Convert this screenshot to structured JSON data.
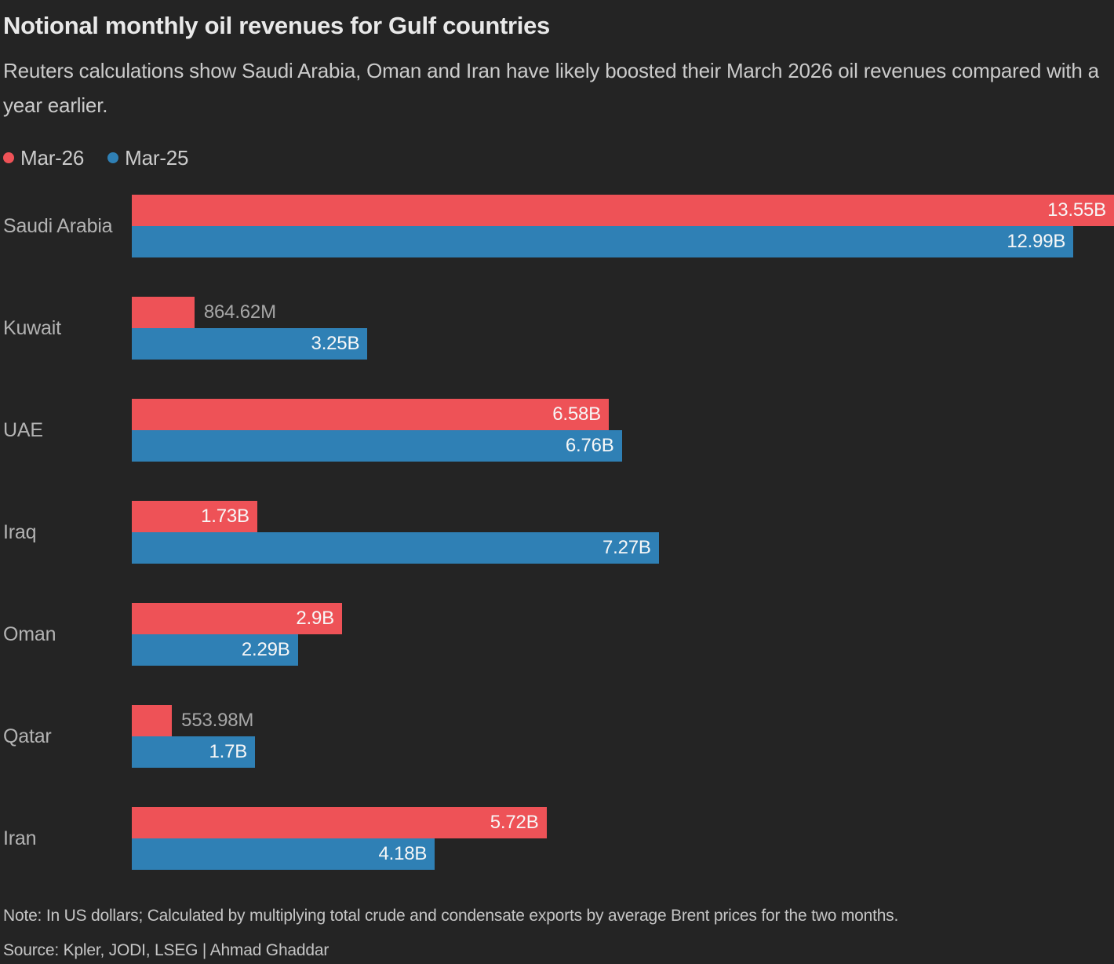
{
  "header": {
    "title": "Notional monthly oil revenues for Gulf countries",
    "subtitle": "Reuters calculations show Saudi Arabia, Oman and Iran have likely boosted their March 2026 oil revenues compared with a year earlier."
  },
  "chart_data": {
    "type": "bar",
    "orientation": "horizontal",
    "unit": "US dollars",
    "categories": [
      "Saudi Arabia",
      "Kuwait",
      "UAE",
      "Iraq",
      "Oman",
      "Qatar",
      "Iran"
    ],
    "series": [
      {
        "name": "Mar-26",
        "color": "#ee5257",
        "values_billions": [
          13.55,
          0.86462,
          6.58,
          1.73,
          2.9,
          0.55398,
          5.72
        ],
        "labels": [
          "13.55B",
          "864.62M",
          "6.58B",
          "1.73B",
          "2.9B",
          "553.98M",
          "5.72B"
        ]
      },
      {
        "name": "Mar-25",
        "color": "#2f80b5",
        "values_billions": [
          12.99,
          3.25,
          6.76,
          7.27,
          2.29,
          1.7,
          4.18
        ],
        "labels": [
          "12.99B",
          "3.25B",
          "6.76B",
          "7.27B",
          "2.29B",
          "1.7B",
          "4.18B"
        ]
      }
    ],
    "xmax_billions": 13.55,
    "legend_position": "top-left",
    "grid": false,
    "value_labels": "end-of-bar"
  },
  "footer": {
    "note": "Note: In US dollars; Calculated by multiplying total crude and condensate exports by average Brent prices for the two months.",
    "source": "Source: Kpler, JODI, LSEG | Ahmad Ghaddar"
  },
  "colors": {
    "background": "#242424",
    "bar_red": "#ee5257",
    "bar_blue": "#2f80b5"
  }
}
